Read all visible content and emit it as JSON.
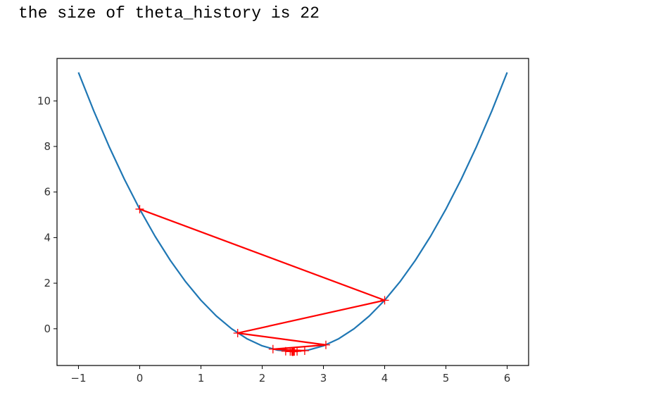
{
  "output_text": "the size of theta_history is 22",
  "chart_data": {
    "type": "line",
    "x": [
      -1,
      -0.75,
      -0.5,
      -0.25,
      0,
      0.25,
      0.5,
      0.75,
      1,
      1.25,
      1.5,
      1.75,
      2,
      2.25,
      2.5,
      2.75,
      3,
      3.25,
      3.5,
      3.75,
      4,
      4.25,
      4.5,
      4.75,
      5,
      5.25,
      5.5,
      5.75,
      6
    ],
    "series": [
      {
        "color": "#1f77b4",
        "values": [
          11.25,
          9.5625,
          8,
          6.5625,
          5.25,
          4.0625,
          3,
          2.0625,
          1.25,
          0.5625,
          0,
          -0.4375,
          -0.75,
          -0.9375,
          -1,
          -0.9375,
          -0.75,
          -0.4375,
          0,
          0.5625,
          1.25,
          2.0625,
          3,
          4.0625,
          5.25,
          6.5625,
          8,
          9.5625,
          11.25
        ]
      },
      {
        "color": "#ff0000",
        "marker": "+",
        "x": [
          0,
          4,
          1.6,
          3.04,
          2.176,
          2.6944,
          2.3834,
          2.57,
          2.458,
          2.5252,
          2.4849,
          2.5091,
          2.4946,
          2.5033,
          2.498,
          2.5012,
          2.4993,
          2.5004,
          2.4997,
          2.5002,
          2.4999,
          2.5001
        ],
        "values": [
          5.25,
          1.25,
          -0.19,
          -0.708,
          -0.895,
          -0.962,
          -0.986,
          -0.995,
          -0.998,
          -0.999,
          -1,
          -1,
          -1,
          -1,
          -1,
          -1,
          -1,
          -1,
          -1,
          -1,
          -1,
          -1
        ]
      }
    ],
    "xlim": [
      -1.35,
      6.35
    ],
    "ylim": [
      -1.6125,
      11.8625
    ],
    "xticks": [
      {
        "value": -1,
        "label": "−1"
      },
      0,
      1,
      2,
      3,
      4,
      5,
      6
    ],
    "yticks": [
      0,
      2,
      4,
      6,
      8,
      10
    ]
  }
}
